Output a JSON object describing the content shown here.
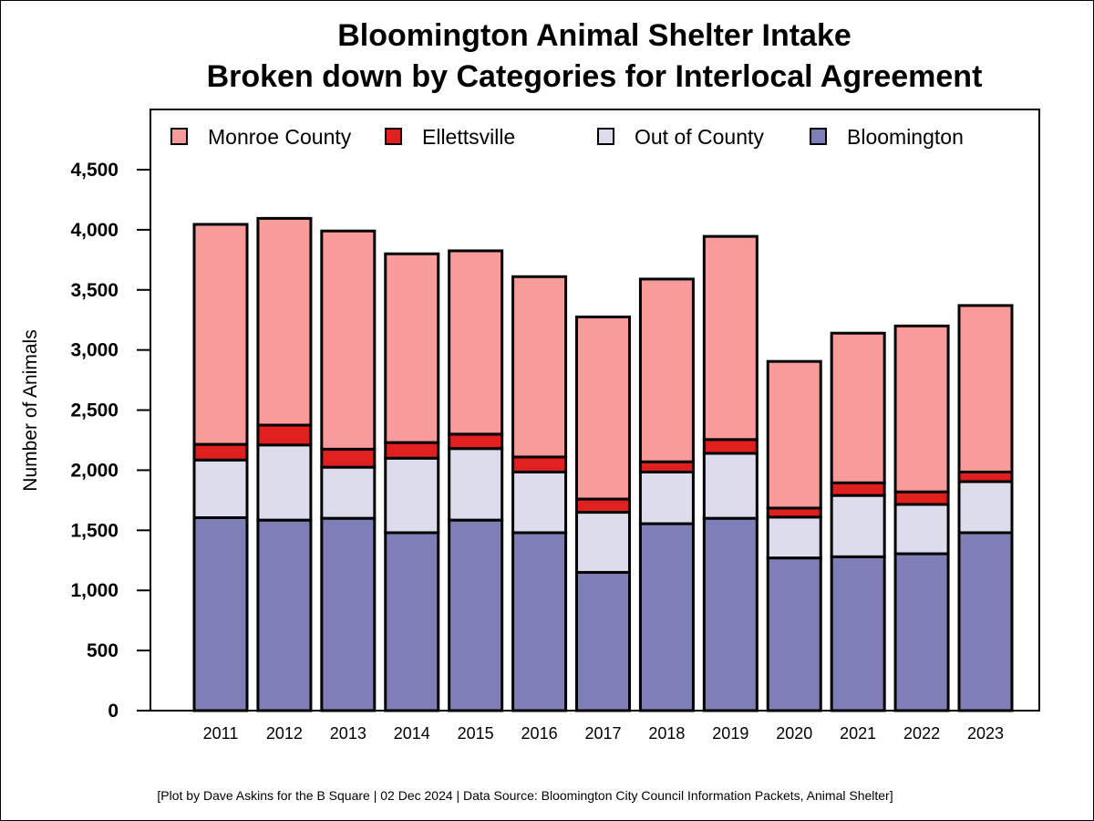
{
  "chart_data": {
    "type": "bar",
    "stacked": true,
    "title": "Bloomington Animal Shelter Intake",
    "subtitle": "Broken down by Categories for Interlocal Agreement",
    "xlabel": "",
    "ylabel": "Number of Animals",
    "ylim": [
      0,
      4500
    ],
    "yticks": [
      0,
      500,
      1000,
      1500,
      2000,
      2500,
      3000,
      3500,
      4000,
      4500
    ],
    "ytick_labels": [
      "0",
      "500",
      "1,000",
      "1,500",
      "2,000",
      "2,500",
      "3,000",
      "3,500",
      "4,000",
      "4,500"
    ],
    "grid": false,
    "legend_position": "top",
    "categories": [
      "2011",
      "2012",
      "2013",
      "2014",
      "2015",
      "2016",
      "2017",
      "2018",
      "2019",
      "2020",
      "2021",
      "2022",
      "2023"
    ],
    "series": [
      {
        "name": "Bloomington",
        "color": "#7f7fb8",
        "values": [
          1605,
          1585,
          1600,
          1480,
          1585,
          1480,
          1150,
          1555,
          1600,
          1270,
          1280,
          1305,
          1480
        ]
      },
      {
        "name": "Out of County",
        "color": "#dcdcec",
        "values": [
          480,
          625,
          425,
          620,
          595,
          505,
          500,
          430,
          540,
          340,
          510,
          410,
          425
        ]
      },
      {
        "name": "Ellettsville",
        "color": "#e0201e",
        "values": [
          130,
          165,
          150,
          130,
          120,
          125,
          110,
          85,
          115,
          75,
          105,
          105,
          80
        ]
      },
      {
        "name": "Monroe County",
        "color": "#f89b9a",
        "values": [
          1830,
          1720,
          1815,
          1570,
          1525,
          1500,
          1515,
          1520,
          1690,
          1220,
          1245,
          1380,
          1385
        ]
      }
    ],
    "legend_order": [
      "Monroe County",
      "Ellettsville",
      "Out of County",
      "Bloomington"
    ],
    "footnote": "[Plot by Dave Askins for the B Square | 02 Dec 2024 | Data Source: Bloomington City Council Information Packets, Animal Shelter]"
  }
}
